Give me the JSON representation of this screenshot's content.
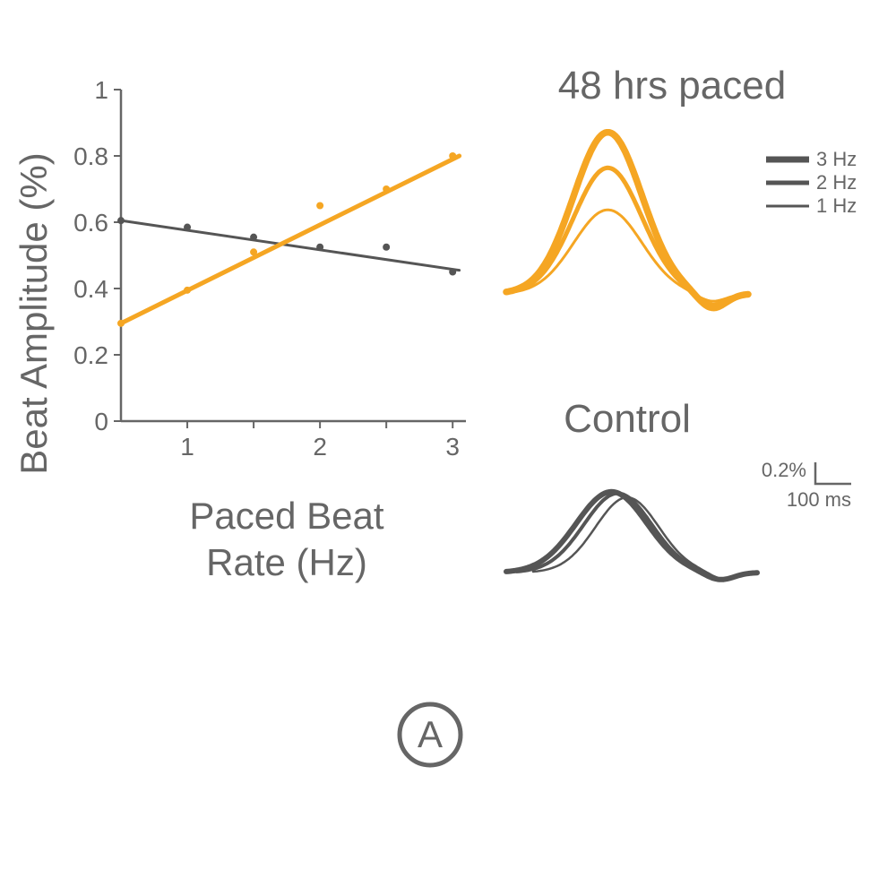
{
  "colors": {
    "axis": "#666666",
    "text": "#666666",
    "paced": "#f5a623",
    "control": "#555555",
    "background": "#ffffff"
  },
  "scatter": {
    "type": "scatter-with-regression",
    "xlabel_line1": "Paced Beat",
    "xlabel_line2": "Rate (Hz)",
    "ylabel": "Beat Amplitude (%)",
    "xlim": [
      0.5,
      3.1
    ],
    "ylim": [
      0,
      1.0
    ],
    "xticks": [
      1,
      2,
      3
    ],
    "xtick_labels": [
      "1",
      "2",
      "3"
    ],
    "yticks": [
      0,
      0.2,
      0.4,
      0.6,
      0.8,
      1
    ],
    "ytick_labels": [
      "0",
      "0.2",
      "0.4",
      "0.6",
      "0.8",
      "1"
    ],
    "axis_width": 2.5,
    "series": {
      "paced": {
        "color": "#f5a623",
        "points": [
          {
            "x": 0.5,
            "y": 0.295
          },
          {
            "x": 1.0,
            "y": 0.395
          },
          {
            "x": 1.5,
            "y": 0.51
          },
          {
            "x": 2.0,
            "y": 0.65
          },
          {
            "x": 2.5,
            "y": 0.7
          },
          {
            "x": 3.0,
            "y": 0.8
          }
        ],
        "regression": {
          "x1": 0.5,
          "y1": 0.295,
          "x2": 3.05,
          "y2": 0.8
        },
        "line_width": 5,
        "marker_radius": 4
      },
      "control": {
        "color": "#555555",
        "points": [
          {
            "x": 0.5,
            "y": 0.605
          },
          {
            "x": 1.0,
            "y": 0.585
          },
          {
            "x": 1.5,
            "y": 0.555
          },
          {
            "x": 2.0,
            "y": 0.525
          },
          {
            "x": 2.5,
            "y": 0.525
          },
          {
            "x": 3.0,
            "y": 0.45
          }
        ],
        "regression": {
          "x1": 0.5,
          "y1": 0.605,
          "x2": 3.05,
          "y2": 0.455
        },
        "line_width": 3,
        "marker_radius": 4
      }
    }
  },
  "traces": {
    "paced": {
      "title": "48 hrs paced",
      "color": "#f5a623",
      "curves": [
        {
          "hz": 1,
          "width": 3,
          "amp": 0.52
        },
        {
          "hz": 2,
          "width": 5,
          "amp": 0.78
        },
        {
          "hz": 3,
          "width": 7.5,
          "amp": 1.0
        }
      ]
    },
    "control": {
      "title": "Control",
      "color": "#555555",
      "curves": [
        {
          "hz": 1,
          "width": 2.5,
          "amp": 0.93,
          "xshift": 30
        },
        {
          "hz": 2,
          "width": 4,
          "amp": 0.98,
          "xshift": 12
        },
        {
          "hz": 3,
          "width": 6,
          "amp": 1.0,
          "xshift": 0
        }
      ]
    },
    "legend": {
      "items": [
        {
          "label": "3 Hz",
          "width": 7
        },
        {
          "label": "2 Hz",
          "width": 5
        },
        {
          "label": "1 Hz",
          "width": 3
        }
      ]
    },
    "scalebar": {
      "y_label": "0.2%",
      "x_label": "100 ms"
    }
  },
  "badge": {
    "letter": "A",
    "stroke": "#666666",
    "stroke_width": 5,
    "radius": 34
  }
}
